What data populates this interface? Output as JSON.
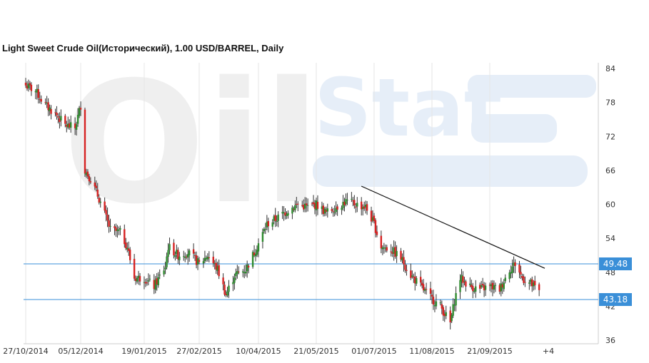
{
  "header": {
    "title": "Light Sweet Crude Oil(Исторический), 1.00 USD/BARREL, Daily"
  },
  "watermark": {
    "text_left": "Oil",
    "text_right": "Stat"
  },
  "colors": {
    "up": "#2e8b2e",
    "down": "#d62222",
    "level_line": "#3a8fd8",
    "badge": "#3a8fd8",
    "trendline": "#111111",
    "grid": "#e6e6e6",
    "watermark": "#efefef",
    "watermark_blue": "#e6eef8"
  },
  "chart_data": {
    "type": "candlestick",
    "title": "Light Sweet Crude Oil(Исторический), 1.00 USD/BARREL, Daily",
    "ylim": [
      36,
      84
    ],
    "y_ticks": [
      "84",
      "78",
      "72",
      "66",
      "60",
      "54",
      "48",
      "42",
      "36"
    ],
    "x_ticks": [
      "27/10/2014",
      "05/12/2014",
      "19/01/2015",
      "27/02/2015",
      "10/04/2015",
      "21/05/2015",
      "01/07/2015",
      "11/08/2015",
      "21/09/2015",
      "+4"
    ],
    "x_tick_dates": [
      "2014-10-27",
      "2014-12-05",
      "2015-01-19",
      "2015-02-27",
      "2015-04-10",
      "2015-05-21",
      "2015-07-01",
      "2015-08-11",
      "2015-09-21"
    ],
    "grid": "vertical",
    "horizontal_levels": [
      {
        "value": 49.48,
        "label": "49.48"
      },
      {
        "value": 43.18,
        "label": "43.18"
      }
    ],
    "trendline": {
      "from": {
        "date": "2015-06-22",
        "value": 63.2
      },
      "to": {
        "date": "2015-10-30",
        "value": 48.7
      }
    },
    "anchors": [
      [
        "2014-10-27",
        81.0
      ],
      [
        "2014-11-03",
        80.0
      ],
      [
        "2014-11-10",
        77.5
      ],
      [
        "2014-11-17",
        76.0
      ],
      [
        "2014-11-24",
        74.0
      ],
      [
        "2014-12-01",
        73.5
      ],
      [
        "2014-12-05",
        77.5
      ],
      [
        "2014-12-08",
        66.0
      ],
      [
        "2014-12-12",
        64.5
      ],
      [
        "2014-12-18",
        61.0
      ],
      [
        "2014-12-26",
        55.5
      ],
      [
        "2015-01-02",
        55.0
      ],
      [
        "2015-01-07",
        52.5
      ],
      [
        "2015-01-12",
        47.0
      ],
      [
        "2015-01-19",
        47.0
      ],
      [
        "2015-01-26",
        45.5
      ],
      [
        "2015-02-03",
        49.0
      ],
      [
        "2015-02-05",
        52.5
      ],
      [
        "2015-02-12",
        51.0
      ],
      [
        "2015-02-19",
        51.5
      ],
      [
        "2015-02-27",
        49.5
      ],
      [
        "2015-03-05",
        51.0
      ],
      [
        "2015-03-12",
        48.5
      ],
      [
        "2015-03-18",
        44.0
      ],
      [
        "2015-03-24",
        47.5
      ],
      [
        "2015-04-01",
        48.5
      ],
      [
        "2015-04-08",
        52.0
      ],
      [
        "2015-04-16",
        56.5
      ],
      [
        "2015-04-23",
        57.5
      ],
      [
        "2015-05-01",
        59.0
      ],
      [
        "2015-05-08",
        60.0
      ],
      [
        "2015-05-15",
        59.5
      ],
      [
        "2015-05-21",
        60.0
      ],
      [
        "2015-05-28",
        58.5
      ],
      [
        "2015-06-04",
        59.5
      ],
      [
        "2015-06-11",
        60.5
      ],
      [
        "2015-06-18",
        60.0
      ],
      [
        "2015-06-25",
        59.5
      ],
      [
        "2015-07-01",
        56.5
      ],
      [
        "2015-07-06",
        52.5
      ],
      [
        "2015-07-13",
        52.0
      ],
      [
        "2015-07-20",
        50.5
      ],
      [
        "2015-07-27",
        47.5
      ],
      [
        "2015-08-03",
        45.5
      ],
      [
        "2015-08-10",
        43.5
      ],
      [
        "2015-08-17",
        42.0
      ],
      [
        "2015-08-24",
        39.0
      ],
      [
        "2015-08-27",
        43.0
      ],
      [
        "2015-08-31",
        47.0
      ],
      [
        "2015-09-07",
        45.5
      ],
      [
        "2015-09-14",
        45.0
      ],
      [
        "2015-09-21",
        45.5
      ],
      [
        "2015-09-28",
        45.0
      ],
      [
        "2015-10-05",
        48.5
      ],
      [
        "2015-10-09",
        49.5
      ],
      [
        "2015-10-14",
        47.0
      ],
      [
        "2015-10-20",
        46.0
      ],
      [
        "2015-10-26",
        44.5
      ]
    ]
  }
}
